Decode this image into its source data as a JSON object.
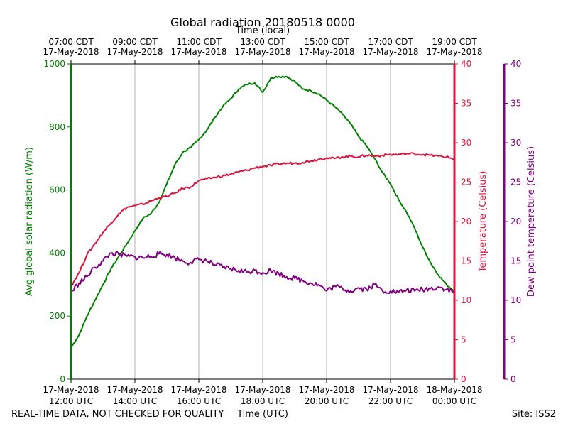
{
  "chart_data": {
    "type": "line",
    "title": "Global radiation 20180518 0000",
    "top_axis_label": "Time (local)",
    "xlabel": "Time (UTC)",
    "x_unit": "hours after 17-May-2018 12:00 UTC",
    "xlim": [
      0,
      12
    ],
    "bottom_ticks": [
      {
        "x": 0,
        "line1": "17-May-2018",
        "line2": "12:00 UTC"
      },
      {
        "x": 2,
        "line1": "17-May-2018",
        "line2": "14:00 UTC"
      },
      {
        "x": 4,
        "line1": "17-May-2018",
        "line2": "16:00 UTC"
      },
      {
        "x": 6,
        "line1": "17-May-2018",
        "line2": "18:00 UTC"
      },
      {
        "x": 8,
        "line1": "17-May-2018",
        "line2": "20:00 UTC"
      },
      {
        "x": 10,
        "line1": "17-May-2018",
        "line2": "22:00 UTC"
      },
      {
        "x": 12,
        "line1": "18-May-2018",
        "line2": "00:00 UTC"
      }
    ],
    "top_ticks": [
      {
        "x": 0,
        "line1": "07:00 CDT",
        "line2": "17-May-2018"
      },
      {
        "x": 2,
        "line1": "09:00 CDT",
        "line2": "17-May-2018"
      },
      {
        "x": 4,
        "line1": "11:00 CDT",
        "line2": "17-May-2018"
      },
      {
        "x": 6,
        "line1": "13:00 CDT",
        "line2": "17-May-2018"
      },
      {
        "x": 8,
        "line1": "15:00 CDT",
        "line2": "17-May-2018"
      },
      {
        "x": 10,
        "line1": "17:00 CDT",
        "line2": "17-May-2018"
      },
      {
        "x": 12,
        "line1": "19:00 CDT",
        "line2": "17-May-2018"
      }
    ],
    "grid": "vertical",
    "axes": {
      "radiation": {
        "label": "Avg global solar radiation (W/m)",
        "ylim": [
          0,
          1000
        ],
        "ticks": [
          0,
          200,
          400,
          600,
          800,
          1000
        ],
        "color": "#008000"
      },
      "temperature": {
        "label": "Temperature (Celsius)",
        "ylim": [
          0,
          40
        ],
        "ticks": [
          0,
          5,
          10,
          15,
          20,
          25,
          30,
          35,
          40
        ],
        "color": "#dc143c"
      },
      "dewpoint": {
        "label": "Dew point temperature (Celsius)",
        "ylim": [
          0,
          40
        ],
        "ticks": [
          0,
          5,
          10,
          15,
          20,
          25,
          30,
          35,
          40
        ],
        "color": "#800080"
      }
    },
    "series": [
      {
        "name": "Avg global solar radiation",
        "axis": "radiation",
        "color": "#008000",
        "x": [
          0,
          0.25,
          0.5,
          0.75,
          1.0,
          1.25,
          1.5,
          1.75,
          2.0,
          2.25,
          2.5,
          2.75,
          3.0,
          3.25,
          3.5,
          3.75,
          4.0,
          4.25,
          4.5,
          4.75,
          5.0,
          5.25,
          5.5,
          5.75,
          6.0,
          6.25,
          6.5,
          6.75,
          7.0,
          7.25,
          7.5,
          7.75,
          8.0,
          8.25,
          8.5,
          8.75,
          9.0,
          9.25,
          9.5,
          9.75,
          10.0,
          10.25,
          10.5,
          10.75,
          11.0,
          11.25,
          11.5,
          11.75,
          12.0
        ],
        "y": [
          100,
          140,
          200,
          250,
          300,
          350,
          390,
          430,
          470,
          510,
          525,
          560,
          620,
          680,
          720,
          735,
          760,
          790,
          830,
          865,
          890,
          920,
          935,
          940,
          910,
          955,
          960,
          960,
          945,
          920,
          915,
          905,
          885,
          865,
          840,
          810,
          770,
          740,
          700,
          655,
          620,
          570,
          530,
          480,
          420,
          370,
          330,
          300,
          280
        ]
      },
      {
        "name": "Temperature",
        "axis": "temperature",
        "color": "#dc143c",
        "x": [
          0,
          0.25,
          0.5,
          0.75,
          1.0,
          1.25,
          1.5,
          1.75,
          2.0,
          2.25,
          2.5,
          2.75,
          3.0,
          3.25,
          3.5,
          3.75,
          4.0,
          4.25,
          4.5,
          4.75,
          5.0,
          5.25,
          5.5,
          5.75,
          6.0,
          6.25,
          6.5,
          6.75,
          7.0,
          7.25,
          7.5,
          7.75,
          8.0,
          8.25,
          8.5,
          8.75,
          9.0,
          9.25,
          9.5,
          9.75,
          10.0,
          10.25,
          10.5,
          10.75,
          11.0,
          11.25,
          11.5,
          11.75,
          12.0
        ],
        "y": [
          11.8,
          13.5,
          15.8,
          17.2,
          18.6,
          19.8,
          21.0,
          21.8,
          22.0,
          22.2,
          22.6,
          23.0,
          23.2,
          23.6,
          24.2,
          24.4,
          25.2,
          25.4,
          25.6,
          25.8,
          26.0,
          26.3,
          26.5,
          26.8,
          27.0,
          27.1,
          27.3,
          27.4,
          27.4,
          27.5,
          27.7,
          27.9,
          28.1,
          28.0,
          28.2,
          28.3,
          28.2,
          28.4,
          28.3,
          28.4,
          28.5,
          28.5,
          28.6,
          28.6,
          28.5,
          28.4,
          28.3,
          28.2,
          27.9
        ]
      },
      {
        "name": "Dew point temperature",
        "axis": "dewpoint",
        "color": "#800080",
        "x": [
          0,
          0.25,
          0.5,
          0.75,
          1.0,
          1.25,
          1.5,
          1.75,
          2.0,
          2.25,
          2.5,
          2.75,
          3.0,
          3.25,
          3.5,
          3.75,
          4.0,
          4.25,
          4.5,
          4.75,
          5.0,
          5.25,
          5.5,
          5.75,
          6.0,
          6.25,
          6.5,
          6.75,
          7.0,
          7.25,
          7.5,
          7.75,
          8.0,
          8.25,
          8.5,
          8.75,
          9.0,
          9.25,
          9.5,
          9.75,
          10.0,
          10.25,
          10.5,
          10.75,
          11.0,
          11.25,
          11.5,
          11.75,
          12.0
        ],
        "y": [
          11.0,
          12.2,
          13.0,
          14.2,
          15.0,
          16.0,
          15.8,
          15.6,
          15.5,
          15.4,
          15.6,
          15.9,
          15.8,
          15.4,
          15.0,
          14.8,
          15.2,
          15.0,
          14.5,
          14.2,
          14.0,
          13.8,
          13.6,
          13.8,
          13.5,
          13.8,
          13.4,
          13.0,
          12.8,
          12.5,
          12.2,
          12.0,
          11.2,
          11.8,
          11.5,
          11.2,
          11.6,
          11.4,
          12.0,
          11.2,
          11.2,
          11.0,
          11.3,
          11.2,
          11.4,
          11.5,
          11.7,
          11.4,
          11.0
        ]
      }
    ],
    "footer_left": "REAL-TIME DATA, NOT CHECKED FOR QUALITY",
    "footer_right": "Site: ISS2"
  }
}
